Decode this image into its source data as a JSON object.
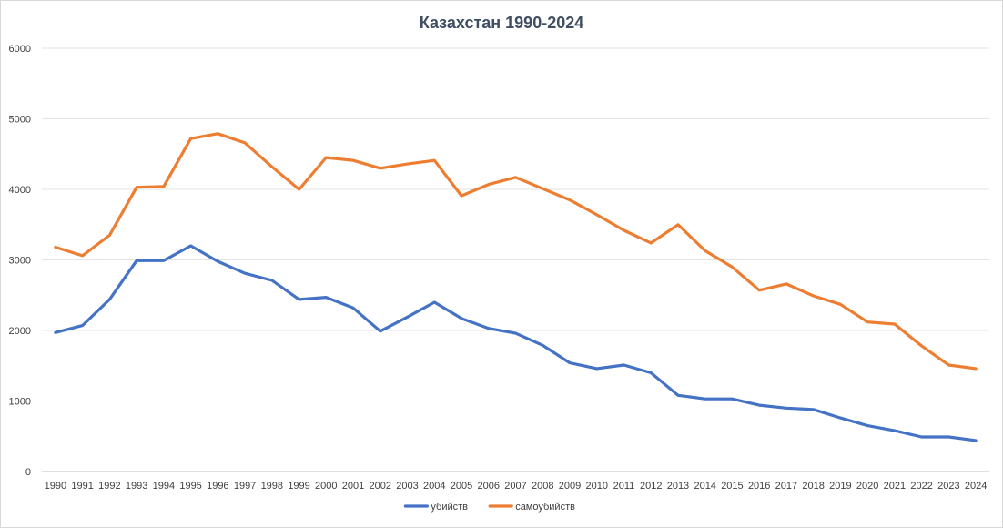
{
  "chart_data": {
    "type": "line",
    "title": "Казахстан 1990-2024",
    "xlabel": "",
    "ylabel": "",
    "ylim": [
      0,
      6000
    ],
    "yticks": [
      0,
      1000,
      2000,
      3000,
      4000,
      5000,
      6000
    ],
    "grid": true,
    "legend_position": "bottom",
    "categories": [
      "1990",
      "1991",
      "1992",
      "1993",
      "1994",
      "1995",
      "1996",
      "1997",
      "1998",
      "1999",
      "2000",
      "2001",
      "2002",
      "2003",
      "2004",
      "2005",
      "2006",
      "2007",
      "2008",
      "2009",
      "2010",
      "2011",
      "2012",
      "2013",
      "2014",
      "2015",
      "2016",
      "2017",
      "2018",
      "2019",
      "2020",
      "2021",
      "2022",
      "2023",
      "2024"
    ],
    "series": [
      {
        "name": "убийств",
        "color": "#4472c4",
        "values": [
          1970,
          2070,
          2440,
          2990,
          2990,
          3200,
          2980,
          2810,
          2710,
          2440,
          2470,
          2320,
          1990,
          2190,
          2400,
          2170,
          2030,
          1960,
          1790,
          1540,
          1460,
          1510,
          1400,
          1080,
          1030,
          1030,
          940,
          900,
          880,
          760,
          650,
          580,
          490,
          490,
          440
        ]
      },
      {
        "name": "самоубийств",
        "color": "#ed7d31",
        "values": [
          3180,
          3060,
          3350,
          4030,
          4040,
          4720,
          4790,
          4660,
          4320,
          4000,
          4450,
          4410,
          4300,
          4360,
          4410,
          3910,
          4070,
          4170,
          4010,
          3850,
          3640,
          3420,
          3240,
          3500,
          3130,
          2900,
          2570,
          2660,
          2490,
          2370,
          2120,
          2090,
          1780,
          1510,
          1460
        ]
      }
    ]
  }
}
